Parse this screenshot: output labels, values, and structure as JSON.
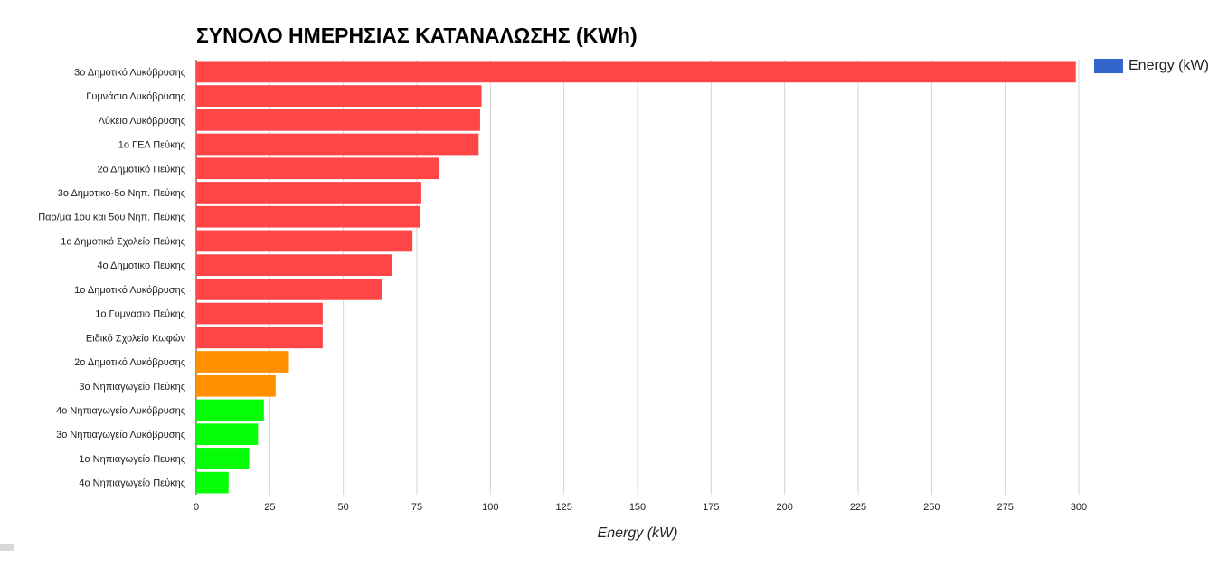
{
  "chart_data": {
    "type": "bar",
    "orientation": "horizontal",
    "title": "ΣΥΝΟΛΟ ΗΜΕΡΗΣΙΑΣ ΚΑΤΑΝΑΛΩΣΗΣ (KWh)",
    "xlabel": "Energy (kW)",
    "ylabel": "",
    "xlim": [
      0,
      300
    ],
    "x_ticks": [
      0,
      25,
      50,
      75,
      100,
      125,
      150,
      175,
      200,
      225,
      250,
      275,
      300
    ],
    "grid": true,
    "legend": {
      "position": "right",
      "entries": [
        {
          "label": "Energy (kW)",
          "color": "#3366cc"
        }
      ]
    },
    "categories": [
      "3ο Δημοτικό Λυκόβρυσης",
      "Γυμνάσιο Λυκόβρυσης",
      "Λύκειο Λυκόβρυσης",
      "1ο ΓΕΛ Πεύκης",
      "2ο Δημοτικό Πεύκης",
      "3ο Δημοτικο-5ο Νηπ. Πεύκης",
      "Παρ/μα 1ου και 5ου Νηπ. Πεύκης",
      "1ο Δημοτικό Σχολείο Πεύκης",
      "4ο Δημοτικο Πευκης",
      "1ο Δημοτικό Λυκόβρυσης",
      "1ο Γυμνασιο Πεύκης",
      "Ειδικό Σχολείο Κωφών",
      "2ο Δημοτικό Λυκόβρυσης",
      "3ο Νηπιαγωγείο Πεύκης",
      "4ο Νηπιαγωγείο Λυκόβρυσης",
      "3ο Νηπιαγωγείο Λυκόβρυσης",
      "1ο Νηπιαγωγείο Πευκης",
      "4ο Νηπιαγωγείο Πεύκης"
    ],
    "series": [
      {
        "name": "Energy (kW)",
        "values": [
          299,
          97,
          96.5,
          96,
          82.5,
          76.5,
          76,
          73.5,
          66.5,
          63,
          43,
          43,
          31.5,
          27,
          23,
          21,
          18,
          11
        ],
        "colors": [
          "#ff4545",
          "#ff4545",
          "#ff4545",
          "#ff4545",
          "#ff4545",
          "#ff4545",
          "#ff4545",
          "#ff4545",
          "#ff4545",
          "#ff4545",
          "#ff4545",
          "#ff4545",
          "#ff9000",
          "#ff9000",
          "#06ff06",
          "#06ff06",
          "#06ff06",
          "#06ff06"
        ]
      }
    ]
  }
}
